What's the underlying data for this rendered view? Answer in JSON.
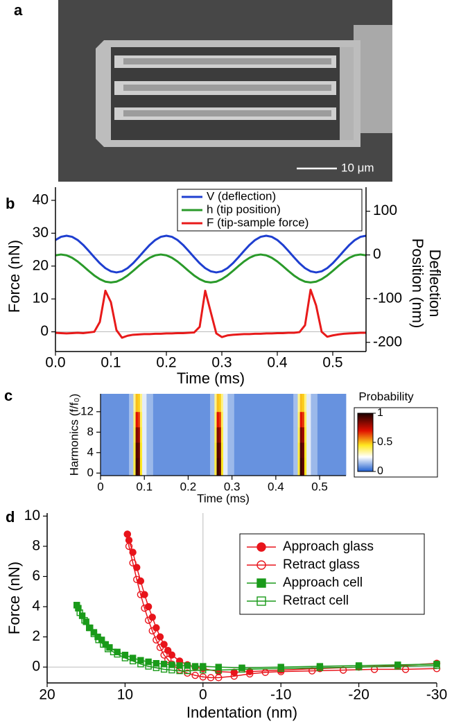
{
  "figure": {
    "panel_labels": [
      "a",
      "b",
      "c",
      "d"
    ],
    "scale_bar": "10 μm"
  },
  "chart_data": [
    {
      "type": "line",
      "xlabel": "Time (ms)",
      "ylabel": "Force (nN)",
      "y2label": [
        "Deflection",
        "Position (nm)"
      ],
      "xlim": [
        0,
        0.56
      ],
      "ylim": [
        -6,
        44
      ],
      "y2lim": [
        -221,
        155
      ],
      "xticks": [
        {
          "value": 0,
          "label": "0.0"
        },
        0.1,
        0.2,
        0.3,
        0.4,
        0.5
      ],
      "yticks": [
        0,
        10,
        20,
        30,
        40
      ],
      "y2ticks": [
        -200,
        -100,
        0,
        100
      ],
      "zero_lines": true,
      "legend": "upper right",
      "x": [
        0,
        0.01,
        0.02,
        0.03,
        0.04,
        0.05,
        0.06,
        0.07,
        0.08,
        0.09,
        0.1,
        0.11,
        0.12,
        0.13,
        0.14,
        0.15,
        0.16,
        0.17,
        0.18,
        0.19,
        0.2,
        0.21,
        0.22,
        0.23,
        0.24,
        0.25,
        0.26,
        0.27,
        0.28,
        0.29,
        0.3,
        0.31,
        0.32,
        0.33,
        0.34,
        0.35,
        0.36,
        0.37,
        0.38,
        0.39,
        0.4,
        0.41,
        0.42,
        0.43,
        0.44,
        0.45,
        0.46,
        0.47,
        0.48,
        0.49,
        0.5,
        0.51,
        0.52,
        0.53,
        0.54,
        0.55,
        0.56
      ],
      "series": [
        {
          "name": "V (deflection)",
          "color": "#1f3fd0",
          "axis": "y2",
          "values": [
            34.2,
            41.5,
            44,
            41.5,
            34.2,
            23,
            9.3,
            -5.3,
            -19,
            -30.2,
            -37.5,
            -40,
            -37.5,
            -30.2,
            -19,
            -5.3,
            9.3,
            23,
            34.2,
            41.5,
            44,
            41.5,
            34.2,
            23,
            9.3,
            -5.3,
            -19,
            -30.2,
            -37.5,
            -40,
            -37.5,
            -30.2,
            -19,
            -5.3,
            9.3,
            23,
            34.2,
            41.5,
            44,
            41.5,
            34.2,
            23,
            9.3,
            -5.3,
            -19,
            -30.2,
            -37.5,
            -40,
            -37.5,
            -30.2,
            -19,
            -5.3,
            9.3,
            23,
            34.2,
            41.5,
            44
          ]
        },
        {
          "name": "h (tip position)",
          "color": "#2a9a2a",
          "axis": "y2",
          "values": [
            -0.9,
            1,
            -0.9,
            -6.5,
            -15,
            -25.4,
            -36.6,
            -47,
            -55.5,
            -61.1,
            -63,
            -61.1,
            -55.5,
            -47,
            -36.6,
            -25.4,
            -15,
            -6.5,
            -0.9,
            1,
            -0.9,
            -6.5,
            -15,
            -25.4,
            -36.6,
            -47,
            -55.5,
            -61.1,
            -63,
            -61.1,
            -55.5,
            -47,
            -36.6,
            -25.4,
            -15,
            -6.5,
            -0.9,
            1,
            -0.9,
            -6.5,
            -15,
            -25.4,
            -36.6,
            -47,
            -55.5,
            -61.1,
            -63,
            -61.1,
            -55.5,
            -47,
            -36.6,
            -25.4,
            -15,
            -6.5,
            -0.9,
            1,
            -0.9
          ]
        },
        {
          "name": "F (tip-sample force)",
          "color": "#e81a1a",
          "axis": "y",
          "values": [
            -0.3,
            -0.4,
            -0.5,
            -0.4,
            -0.3,
            -0.4,
            -0.2,
            0,
            3,
            12.5,
            9,
            0.5,
            -1.8,
            -1.2,
            -0.9,
            -0.8,
            -0.7,
            -0.7,
            -0.6,
            -0.6,
            -0.5,
            -0.5,
            -0.4,
            -0.4,
            -0.3,
            -0.2,
            1.5,
            12.5,
            6,
            -0.5,
            -1.6,
            -1.1,
            -0.9,
            -0.8,
            -0.7,
            -0.7,
            -0.6,
            -0.6,
            -0.5,
            -0.5,
            -0.4,
            -0.4,
            -0.3,
            -0.3,
            -0.1,
            2,
            12.8,
            8,
            0,
            -1.5,
            -1.1,
            -0.8,
            -0.6,
            -0.5,
            -0.4,
            -0.3,
            -0.3
          ]
        }
      ]
    },
    {
      "type": "heatmap",
      "xlabel": "Time (ms)",
      "ylabel": "Harmonics (f/f₀)",
      "xlim": [
        0,
        0.56
      ],
      "ylim": [
        -0.5,
        15.5
      ],
      "xticks": [
        0,
        0.1,
        0.2,
        0.3,
        0.4,
        0.5
      ],
      "yticks": [
        0,
        4,
        8,
        12
      ],
      "x_edges": [
        0,
        0.065,
        0.075,
        0.08,
        0.085,
        0.09,
        0.095,
        0.105,
        0.12,
        0.25,
        0.26,
        0.265,
        0.27,
        0.275,
        0.28,
        0.29,
        0.305,
        0.44,
        0.45,
        0.455,
        0.46,
        0.465,
        0.47,
        0.48,
        0.495,
        0.56
      ],
      "y_edges": [
        -0.5,
        3,
        6,
        9,
        12,
        15.5
      ],
      "z": [
        [
          0.08,
          0.15,
          0.42,
          0.95,
          0.9,
          0.45,
          0.22,
          0.14,
          0.08,
          0.15,
          0.42,
          0.95,
          0.9,
          0.45,
          0.22,
          0.14,
          0.08,
          0.15,
          0.42,
          0.95,
          0.9,
          0.45,
          0.22,
          0.14,
          0.08
        ],
        [
          0.08,
          0.15,
          0.42,
          0.92,
          0.88,
          0.44,
          0.22,
          0.14,
          0.08,
          0.15,
          0.42,
          0.92,
          0.88,
          0.44,
          0.22,
          0.14,
          0.08,
          0.15,
          0.42,
          0.92,
          0.88,
          0.44,
          0.22,
          0.14,
          0.08
        ],
        [
          0.08,
          0.15,
          0.4,
          0.85,
          0.8,
          0.42,
          0.22,
          0.14,
          0.08,
          0.15,
          0.4,
          0.85,
          0.8,
          0.42,
          0.22,
          0.14,
          0.08,
          0.15,
          0.4,
          0.85,
          0.8,
          0.42,
          0.22,
          0.14,
          0.08
        ],
        [
          0.08,
          0.15,
          0.38,
          0.7,
          0.65,
          0.4,
          0.22,
          0.14,
          0.08,
          0.15,
          0.38,
          0.7,
          0.65,
          0.4,
          0.22,
          0.14,
          0.08,
          0.15,
          0.38,
          0.7,
          0.65,
          0.4,
          0.22,
          0.14,
          0.08
        ],
        [
          0.08,
          0.15,
          0.35,
          0.5,
          0.48,
          0.36,
          0.22,
          0.14,
          0.08,
          0.15,
          0.35,
          0.5,
          0.48,
          0.36,
          0.22,
          0.14,
          0.08,
          0.15,
          0.35,
          0.5,
          0.48,
          0.36,
          0.22,
          0.14,
          0.08
        ]
      ],
      "colorscale": [
        [
          0,
          "#1f5fd0"
        ],
        [
          0.25,
          "#ffffff"
        ],
        [
          0.45,
          "#ffe820"
        ],
        [
          0.7,
          "#e01000"
        ],
        [
          1,
          "#1a0000"
        ]
      ],
      "colorbar": {
        "title": "Probability",
        "clim": [
          0,
          1
        ],
        "ticks": [
          0,
          0.5,
          1
        ]
      }
    },
    {
      "type": "scatter",
      "xlabel": "Indentation (nm)",
      "ylabel": "Force (nN)",
      "xlim": [
        20,
        -30
      ],
      "ylim": [
        -1.05,
        10.2
      ],
      "xticks": [
        20,
        10,
        0,
        -10,
        -20,
        -30
      ],
      "yticks": [
        0,
        2,
        4,
        6,
        8,
        10
      ],
      "zero_lines": true,
      "legend": "upper right",
      "series": [
        {
          "name": "Approach glass",
          "color": "#e8141b",
          "marker": "circle",
          "filled": true,
          "x": [
            9.7,
            9.5,
            9,
            8.5,
            8,
            7.5,
            7,
            6.5,
            6,
            5.5,
            5,
            4.5,
            4,
            3,
            2,
            1,
            0,
            -2,
            -4,
            -6,
            -10,
            -15,
            -20,
            -25,
            -30
          ],
          "values": [
            8.8,
            8.4,
            7.6,
            6.6,
            5.7,
            4.8,
            4.0,
            3.3,
            2.6,
            2.0,
            1.5,
            1.1,
            0.8,
            0.4,
            0.15,
            0,
            -0.1,
            -0.3,
            -0.35,
            -0.3,
            -0.2,
            -0.1,
            0,
            0.1,
            0.25
          ]
        },
        {
          "name": "Retract glass",
          "color": "#e8141b",
          "marker": "circle",
          "filled": false,
          "x": [
            9.7,
            9.5,
            9,
            8.5,
            8,
            7.5,
            7,
            6.5,
            6,
            5.5,
            5,
            4.5,
            4,
            3,
            2,
            1,
            0,
            -1,
            -2,
            -4,
            -6,
            -8,
            -10,
            -14,
            -18,
            -22,
            -26,
            -30
          ],
          "values": [
            8.8,
            8.0,
            6.9,
            5.8,
            4.8,
            3.9,
            3.1,
            2.4,
            1.8,
            1.3,
            0.8,
            0.5,
            0.2,
            -0.2,
            -0.4,
            -0.55,
            -0.65,
            -0.7,
            -0.7,
            -0.6,
            -0.45,
            -0.35,
            -0.3,
            -0.25,
            -0.2,
            -0.15,
            -0.15,
            -0.1
          ]
        },
        {
          "name": "Approach cell",
          "color": "#1a9a1a",
          "marker": "square",
          "filled": true,
          "x": [
            16.2,
            16,
            15.5,
            15,
            14.5,
            14,
            13.5,
            13,
            12.5,
            12,
            11,
            10,
            9,
            8,
            7,
            6,
            5,
            4,
            3,
            2,
            1,
            0,
            -2,
            -5,
            -10,
            -15,
            -20,
            -25,
            -30
          ],
          "values": [
            4.1,
            3.9,
            3.4,
            3.0,
            2.6,
            2.3,
            2.0,
            1.8,
            1.5,
            1.3,
            1.0,
            0.8,
            0.6,
            0.45,
            0.35,
            0.25,
            0.2,
            0.15,
            0.1,
            0.1,
            0.05,
            0.05,
            0,
            -0.05,
            0,
            0.05,
            0.1,
            0.15,
            0.2
          ]
        },
        {
          "name": "Retract cell",
          "color": "#1a9a1a",
          "marker": "square",
          "filled": false,
          "x": [
            16.2,
            15.8,
            15.2,
            14.6,
            14,
            13.4,
            12.8,
            12.2,
            11.5,
            11,
            10,
            9,
            8,
            7,
            6,
            5,
            4,
            3,
            2,
            0,
            -2,
            -5,
            -10,
            -15,
            -20,
            -25,
            -30
          ],
          "values": [
            4.1,
            3.6,
            3.1,
            2.6,
            2.2,
            1.8,
            1.5,
            1.2,
            1.0,
            0.85,
            0.6,
            0.4,
            0.2,
            0.05,
            -0.05,
            -0.15,
            -0.2,
            -0.25,
            -0.25,
            -0.2,
            -0.2,
            -0.15,
            -0.1,
            -0.05,
            0,
            0.05,
            0.1
          ]
        }
      ]
    }
  ]
}
